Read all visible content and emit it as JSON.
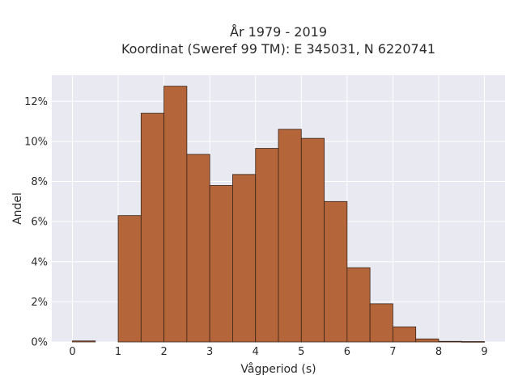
{
  "chart_data": {
    "type": "bar",
    "title_line1": "År 1979 - 2019",
    "title_line2": "Koordinat (Sweref 99 TM): E 345031, N 6220741",
    "xlabel": "Vågperiod (s)",
    "ylabel": "Andel",
    "x_ticks": [
      "0",
      "1",
      "2",
      "3",
      "4",
      "5",
      "6",
      "7",
      "8",
      "9"
    ],
    "y_ticks": [
      "0%",
      "2%",
      "4%",
      "6%",
      "8%",
      "10%",
      "12%"
    ],
    "bin_width": 0.5,
    "bins": [
      {
        "x_start": 0.0,
        "value": 0.0005
      },
      {
        "x_start": 0.5,
        "value": 0.0
      },
      {
        "x_start": 1.0,
        "value": 0.063
      },
      {
        "x_start": 1.5,
        "value": 0.114
      },
      {
        "x_start": 2.0,
        "value": 0.1275
      },
      {
        "x_start": 2.5,
        "value": 0.0935
      },
      {
        "x_start": 3.0,
        "value": 0.078
      },
      {
        "x_start": 3.5,
        "value": 0.0835
      },
      {
        "x_start": 4.0,
        "value": 0.0965
      },
      {
        "x_start": 4.5,
        "value": 0.106
      },
      {
        "x_start": 5.0,
        "value": 0.1015
      },
      {
        "x_start": 5.5,
        "value": 0.07
      },
      {
        "x_start": 6.0,
        "value": 0.037
      },
      {
        "x_start": 6.5,
        "value": 0.019
      },
      {
        "x_start": 7.0,
        "value": 0.0075
      },
      {
        "x_start": 7.5,
        "value": 0.0015
      },
      {
        "x_start": 8.0,
        "value": 0.0003
      },
      {
        "x_start": 8.5,
        "value": 0.0002
      }
    ],
    "xlim": [
      -0.45,
      9.45
    ],
    "ylim": [
      0,
      0.133
    ],
    "grid": true,
    "bar_color": "#b5653a",
    "bar_edge_color": "#3a2418",
    "plot_bg_color": "#e8e9f1"
  }
}
